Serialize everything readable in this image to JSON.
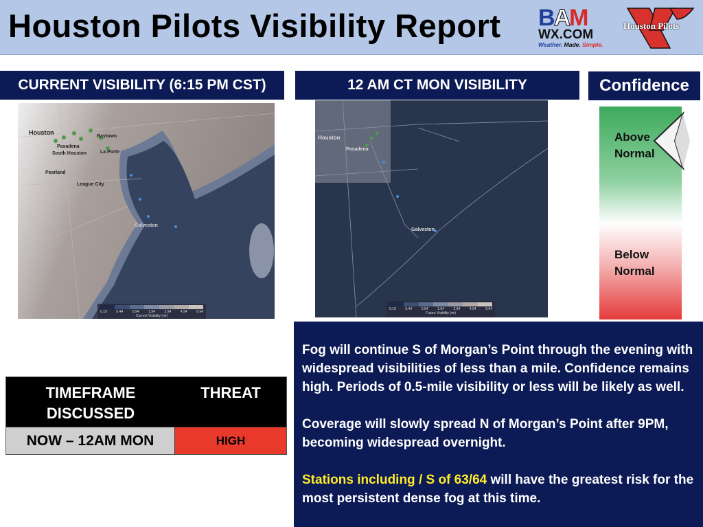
{
  "header": {
    "title": "Houston Pilots Visibility Report"
  },
  "logos": {
    "bam": {
      "top": "BAM",
      "middle": "WX.COM",
      "tagline_1": "Weather.",
      "tagline_2": "Made.",
      "tagline_3": "Simple."
    },
    "pilots": {
      "text": "Houston Pilots"
    }
  },
  "panels": {
    "current": {
      "title": "CURRENT VISIBILITY (6:15 PM CST)",
      "legend_title": "Current Visibility (mi)"
    },
    "future": {
      "title": "12 AM CT MON VISIBILITY",
      "legend_title": "Future Visibility (mi)"
    },
    "legend_ticks": [
      "0.19",
      "0.44",
      "0.94",
      "1.94",
      "2.94",
      "4.94",
      "6.94"
    ],
    "legend_colors": [
      "#1e2a48",
      "#3d4f72",
      "#5a6c8e",
      "#7c8aa6",
      "#9a9aa6",
      "#b3aaa8",
      "#cbc2c0"
    ],
    "map_labels": [
      "Houston",
      "Pasadena",
      "South Houston",
      "Pearland",
      "League City",
      "Galveston",
      "Baytown",
      "La Porte"
    ]
  },
  "confidence": {
    "title": "Confidence",
    "above": [
      "Above",
      "Normal"
    ],
    "below": [
      "Below",
      "Normal"
    ],
    "indicator": "above"
  },
  "table": {
    "headers": [
      "TIMEFRAME DISCUSSED",
      "THREAT"
    ],
    "row": {
      "timeframe": "NOW – 12AM MON",
      "threat": "HIGH"
    },
    "threat_color": "#e8392a"
  },
  "discussion": {
    "p1": "Fog will continue S of Morgan’s Point through the evening with widespread visibilities of less than a mile. Confidence remains high. Periods of 0.5-mile visibility or less will be likely as well.",
    "p2": "Coverage will slowly spread N of Morgan’s Point after 9PM, becoming widespread overnight.",
    "p3_highlight": "Stations including / S of 63/64",
    "p3_rest": " will have the greatest risk for the most persistent dense fog at this time."
  }
}
